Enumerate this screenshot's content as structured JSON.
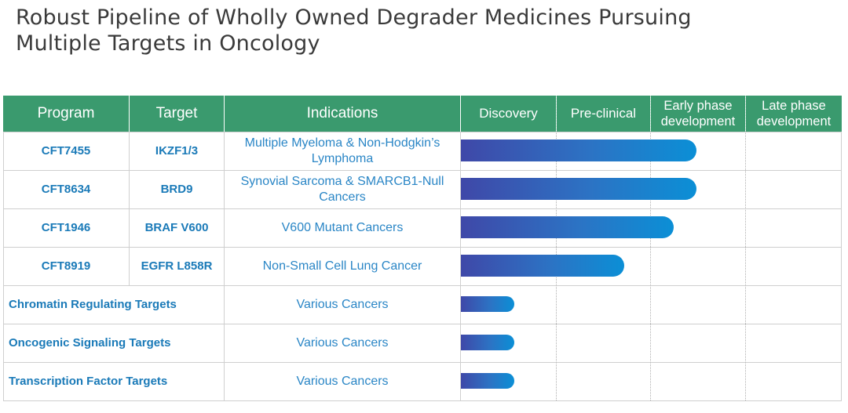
{
  "title": {
    "line1": "Robust Pipeline of Wholly Owned Degrader Medicines Pursuing",
    "line2": "Multiple Targets in Oncology"
  },
  "headers": {
    "program": "Program",
    "target": "Target",
    "indications": "Indications",
    "discovery": "Discovery",
    "preclinical": "Pre-clinical",
    "early_line1": "Early phase",
    "early_line2": "development",
    "late_line1": "Late phase",
    "late_line2": "development"
  },
  "programs": [
    {
      "program": "CFT7455",
      "target": "IKZF1/3",
      "indication": "Multiple Myeloma & Non-Hodgkin’s Lymphoma",
      "progress": 0.62
    },
    {
      "program": "CFT8634",
      "target": "BRD9",
      "indication": "Synovial Sarcoma & SMARCB1-Null Cancers",
      "progress": 0.62
    },
    {
      "program": "CFT1946",
      "target": "BRAF V600",
      "indication": "V600 Mutant Cancers",
      "progress": 0.56
    },
    {
      "program": "CFT8919",
      "target": "EGFR L858R",
      "indication": "Non-Small Cell Lung Cancer",
      "progress": 0.43
    }
  ],
  "target_groups": [
    {
      "name": "Chromatin Regulating Targets",
      "indication": "Various Cancers",
      "progress": 0.14
    },
    {
      "name": "Oncogenic Signaling Targets",
      "indication": "Various Cancers",
      "progress": 0.14
    },
    {
      "name": "Transcription Factor Targets",
      "indication": "Various Cancers",
      "progress": 0.14
    }
  ],
  "colors": {
    "header_bg": "#3a9a6e",
    "text_blue": "#1a7ab8",
    "bar_start": "#3f48a8",
    "bar_end": "#0b8fd6"
  }
}
